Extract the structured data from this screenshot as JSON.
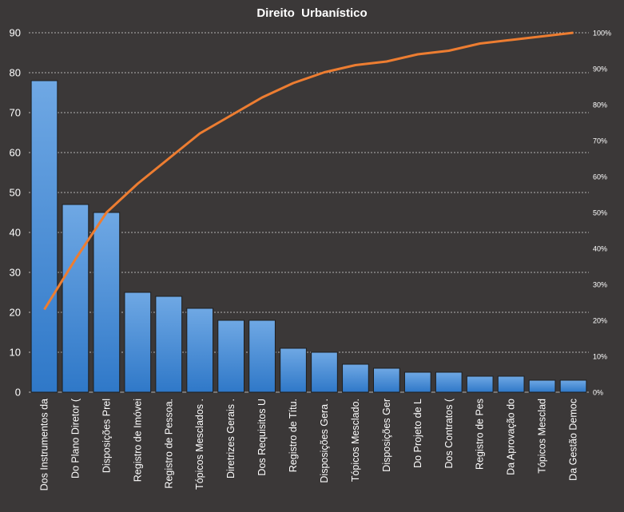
{
  "chart_data": {
    "type": "bar",
    "title": "Direito  Urbanístico",
    "categories": [
      "Dos Instrumentos  da",
      "Do Plano Diretor (",
      "Disposições Prel",
      "Registro de Imóvei",
      "Registro de Pessoa.",
      "Tópicos Mesclados  .",
      "Diretrizes Gerais .",
      "Dos Requisitos U",
      "Registro de Títu.",
      "Disposições Gera .",
      "Tópicos Mesclado.",
      "Disposições Ger",
      "Do Projeto de L",
      "Dos Contratos (",
      "Registro de Pes",
      "Da Aprovação do",
      "Tópicos Mesclad",
      "Da Gestão Democ"
    ],
    "series": [
      {
        "type": "bar",
        "values": [
          78,
          47,
          45,
          25,
          24,
          21,
          18,
          18,
          11,
          10,
          7,
          6,
          5,
          5,
          4,
          4,
          3,
          3
        ]
      },
      {
        "type": "line",
        "axis": "secondary",
        "values": [
          0.23,
          0.37,
          0.5,
          0.58,
          0.65,
          0.72,
          0.77,
          0.82,
          0.86,
          0.89,
          0.91,
          0.92,
          0.94,
          0.95,
          0.97,
          0.98,
          0.99,
          1.0
        ]
      }
    ],
    "ylim": [
      0,
      90
    ],
    "yticks": [
      "0",
      "10",
      "20",
      "30",
      "40",
      "50",
      "60",
      "70",
      "80",
      "90"
    ],
    "y2lim": [
      0,
      1
    ],
    "y2ticks": [
      "0%",
      "10%",
      "20%",
      "30%",
      "40%",
      "50%",
      "60%",
      "70%",
      "80%",
      "90%",
      "100%"
    ],
    "grid": true,
    "colors": {
      "background": "#3b3838",
      "bar_top": "#6fa8e4",
      "bar_bottom": "#2f78c8",
      "bar_edge": "#1e1e1e",
      "line": "#ed7d31",
      "grid": "#d9d9d9",
      "text": "#ffffff"
    }
  }
}
